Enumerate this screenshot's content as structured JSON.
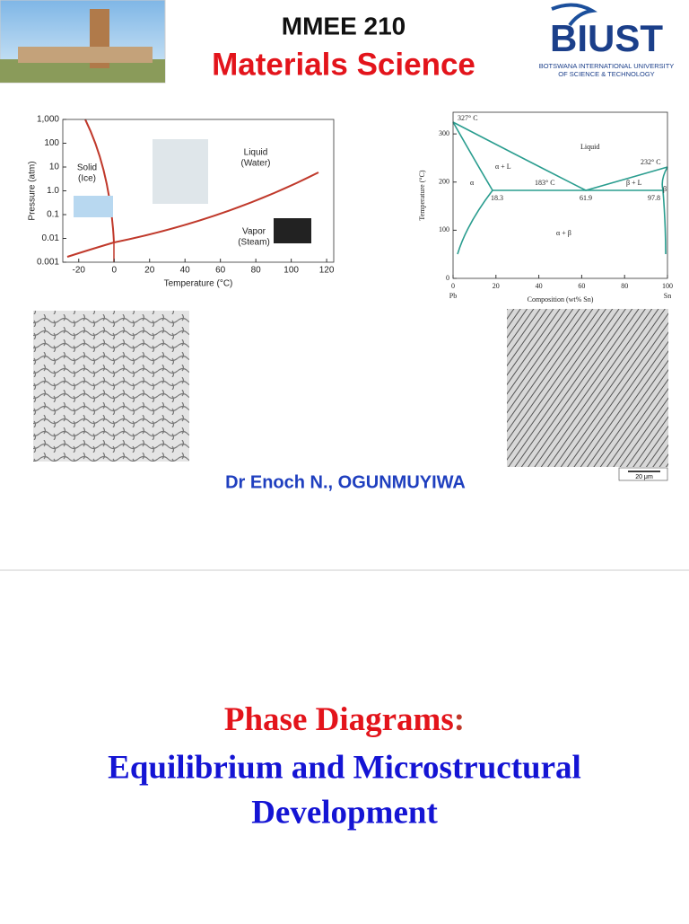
{
  "header": {
    "course": "MMEE 210",
    "title": "Materials Science",
    "logo": "BIUST",
    "logo_sub": [
      "BOTSWANA INTERNATIONAL UNIVERSITY",
      "OF SCIENCE & TECHNOLOGY"
    ]
  },
  "figures": [
    {
      "type": "line",
      "xlabel": "Temperature (°C)",
      "ylabel": "Pressure (atm)",
      "log_y": true,
      "xlim": [
        -29,
        124
      ],
      "ylim": [
        0.001,
        1000
      ],
      "xticks": [
        -20,
        0,
        20,
        40,
        60,
        80,
        100,
        120
      ],
      "yticks": [
        {
          "value": 1000,
          "label": "1,000"
        },
        100,
        10,
        {
          "value": 1,
          "label": "1.0"
        },
        0.1,
        0.01,
        0.001
      ],
      "color": "#c0392b",
      "regions": [
        "Solid",
        "(Ice)",
        "Liquid",
        "(Water)",
        "Vapor",
        "(Steam)"
      ]
    },
    {
      "type": "line",
      "xlabel": "Composition (wt% Sn)",
      "ylabel": "Temperature (°C)",
      "xlim": [
        0,
        100
      ],
      "ylim": [
        0,
        345
      ],
      "xticks": [
        0,
        20,
        40,
        60,
        80,
        100
      ],
      "yticks": [
        0,
        100,
        200,
        300
      ],
      "color": "#2a9d8f",
      "ends": [
        "Pb",
        "Sn"
      ],
      "labels": [
        "327° C",
        "232° C",
        "183° C",
        "18.3",
        "61.9",
        "97.8",
        "Liquid",
        "α + L",
        "β + L",
        "α",
        "β",
        "α + β"
      ]
    }
  ],
  "scale_bar": "20 μm",
  "author": "Dr Enoch N., OGUNMUYIWA",
  "slide_title": {
    "line1": "Phase Diagrams",
    "colon": ":",
    "line2": "Equilibrium and Microstructural",
    "line3": "Development"
  }
}
